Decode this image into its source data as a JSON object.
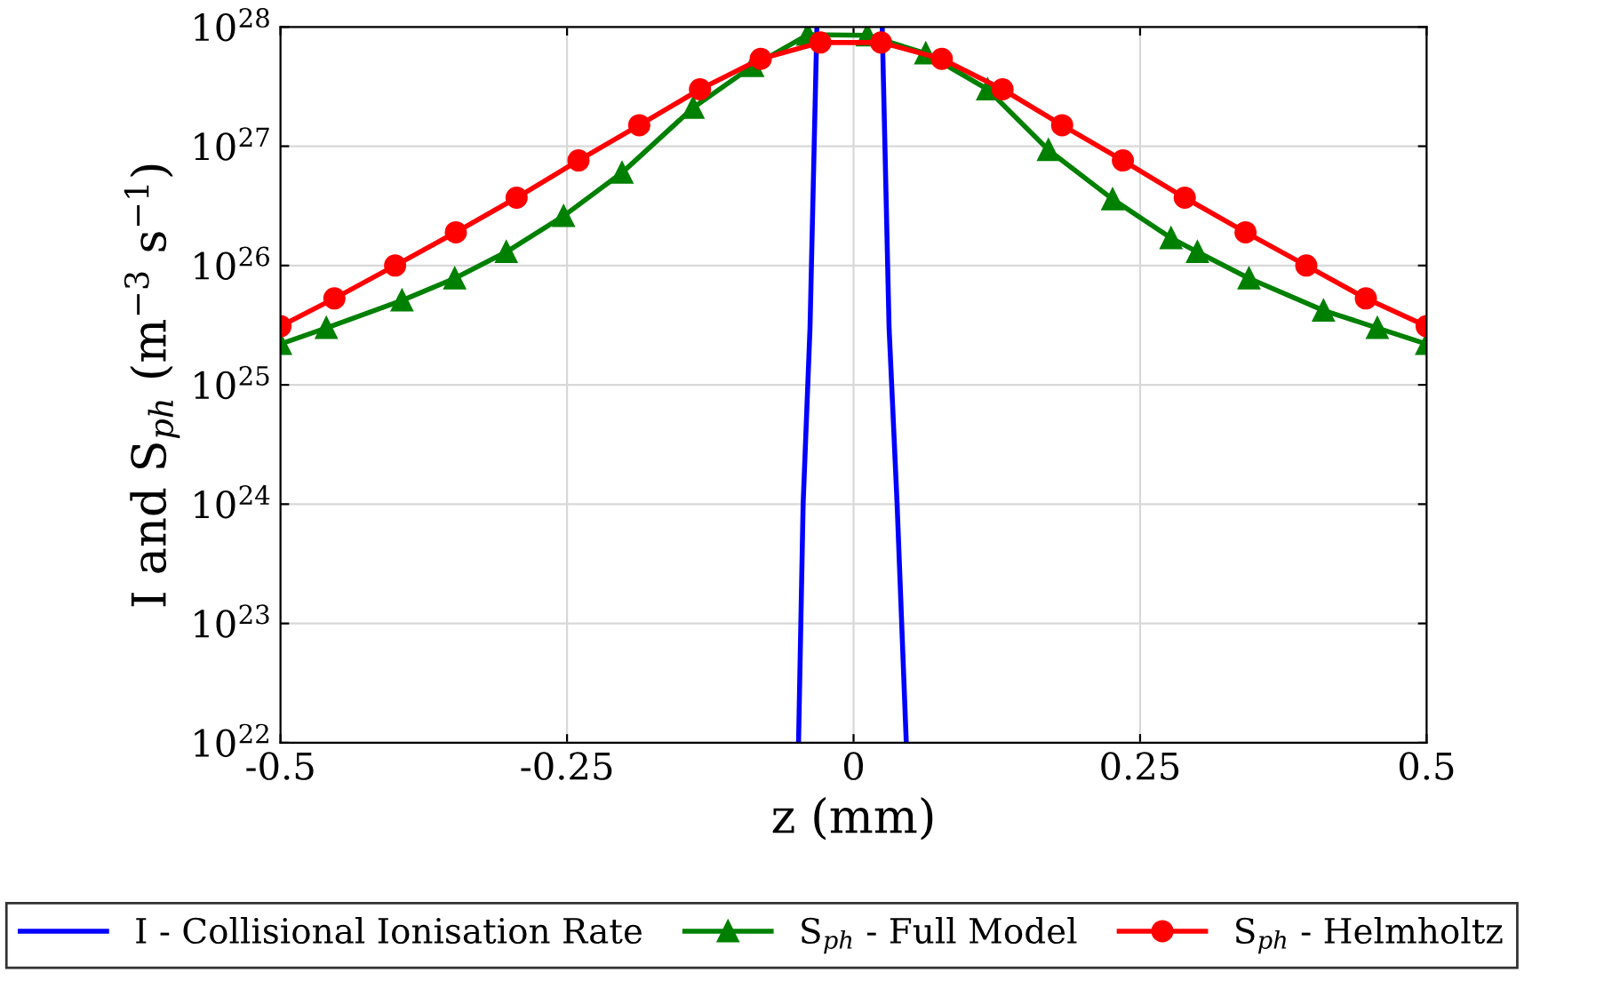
{
  "chart_data": {
    "type": "line",
    "xlabel": "z (mm)",
    "ylabel": "I and S$_{ph}$ (m$^{−3}$ s$^{−1}$)",
    "log": "y",
    "grid": true,
    "legend": "bottom",
    "xlim": [
      -0.5,
      0.5
    ],
    "xticks": [
      {
        "value": -0.5,
        "label": "-0.5"
      },
      {
        "value": -0.25,
        "label": "-0.25"
      },
      0,
      0.25,
      0.5
    ],
    "ylim": [
      1e+22,
      1e+28
    ],
    "yticks": [
      {
        "value": 1e+22,
        "label": "10$^{22}$"
      },
      {
        "value": 1e+23,
        "label": "10$^{23}$"
      },
      {
        "value": 1e+24,
        "label": "10$^{24}$"
      },
      {
        "value": 1e+25,
        "label": "10$^{25}$"
      },
      {
        "value": 1e+26,
        "label": "10$^{26}$"
      },
      {
        "value": 1e+27,
        "label": "10$^{27}$"
      },
      {
        "value": 1e+28,
        "label": "10$^{28}$"
      }
    ],
    "series": [
      {
        "name": "I - Collisional Ionisation Rate",
        "color": "#0000ff",
        "marker": "none",
        "x": [
          -0.048,
          -0.044,
          -0.038,
          -0.032,
          0,
          0.025,
          0.031,
          0.038,
          0.046
        ],
        "values": [
          1e+22,
          1e+24,
          3e+25,
          1e+28,
          null,
          1e+28,
          3e+25,
          1e+24,
          1e+22
        ]
      },
      {
        "name": "S$_{ph}$ - Full Model",
        "color": "#008000",
        "marker": "triangle",
        "x": [
          -0.5,
          -0.46,
          -0.394,
          -0.348,
          -0.303,
          -0.253,
          -0.202,
          -0.14,
          -0.088,
          -0.04,
          0.012,
          0.063,
          0.117,
          0.17,
          0.226,
          0.277,
          0.3,
          0.345,
          0.41,
          0.457,
          0.5
        ],
        "values": [
          2.2e+25,
          3e+25,
          5.1e+25,
          7.8e+25,
          1.3e+26,
          2.6e+26,
          6e+26,
          2.1e+27,
          4.7e+27,
          8.6e+27,
          8.5e+27,
          6e+27,
          3e+27,
          9.3e+26,
          3.6e+26,
          1.7e+26,
          1.3e+26,
          7.8e+25,
          4.2e+25,
          3e+25,
          2.2e+25
        ]
      },
      {
        "name": "S$_{ph}$ - Helmholtz",
        "color": "#ff0000",
        "marker": "circle",
        "x": [
          -0.5,
          -0.453,
          -0.4,
          -0.347,
          -0.294,
          -0.24,
          -0.187,
          -0.134,
          -0.081,
          -0.029,
          0.024,
          0.077,
          0.13,
          0.182,
          0.235,
          0.289,
          0.342,
          0.395,
          0.447,
          0.5
        ],
        "values": [
          3.1e+25,
          5.3e+25,
          1e+26,
          1.9e+26,
          3.7e+26,
          7.6e+26,
          1.5e+27,
          3e+27,
          5.4e+27,
          7.4e+27,
          7.4e+27,
          5.4e+27,
          3e+27,
          1.5e+27,
          7.6e+26,
          3.7e+26,
          1.9e+26,
          1e+26,
          5.3e+25,
          3.1e+25
        ]
      }
    ]
  }
}
